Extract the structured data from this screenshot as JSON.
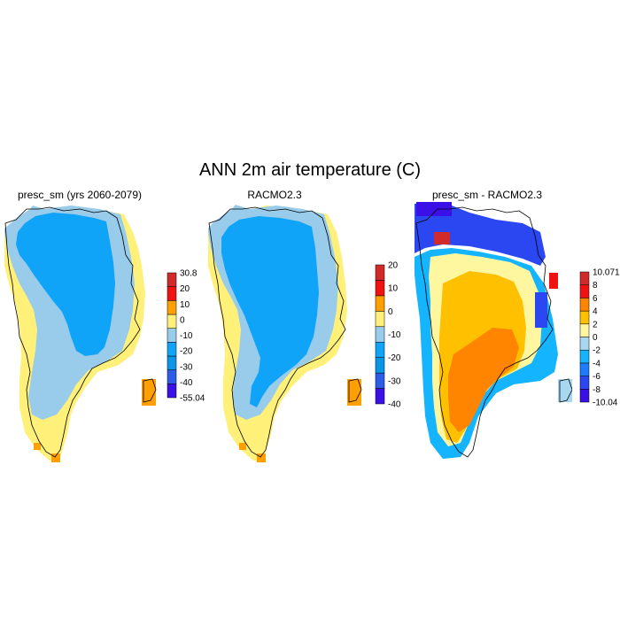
{
  "title": "ANN 2m air temperature (C)",
  "panels": [
    {
      "id": "presc",
      "title": "presc_sm (yrs 2060-2079)",
      "colorbar": {
        "colors": [
          "#3a10e6",
          "#2d5ce8",
          "#0a96e6",
          "#0fa4f7",
          "#99cceb",
          "#fff07a",
          "#ffa000",
          "#f01212",
          "#d12a2a"
        ],
        "labels": [
          "30.8",
          "20",
          "10",
          "0",
          "-10",
          "-20",
          "-30",
          "-40",
          "-55.04"
        ]
      }
    },
    {
      "id": "racmo",
      "title": "RACMO2.3",
      "colorbar": {
        "colors": [
          "#3a10e6",
          "#2d5ce8",
          "#0a96e6",
          "#0fa4f7",
          "#99cceb",
          "#fff07a",
          "#ffa000",
          "#f01212",
          "#d12a2a"
        ],
        "labels": [
          "20",
          "10",
          "0",
          "-10",
          "-20",
          "-30",
          "-40"
        ]
      }
    },
    {
      "id": "diff",
      "title": "presc_sm - RACMO2.3",
      "colorbar": {
        "colors": [
          "#3a10e6",
          "#2a47f2",
          "#1d7bff",
          "#14b4ff",
          "#a8d8ef",
          "#fff7a0",
          "#ffc000",
          "#ff8400",
          "#f01212",
          "#d12a2a"
        ],
        "labels": [
          "10.071",
          "8",
          "6",
          "4",
          "2",
          "0",
          "-2",
          "-4",
          "-6",
          "-8",
          "-10.04"
        ]
      }
    }
  ]
}
